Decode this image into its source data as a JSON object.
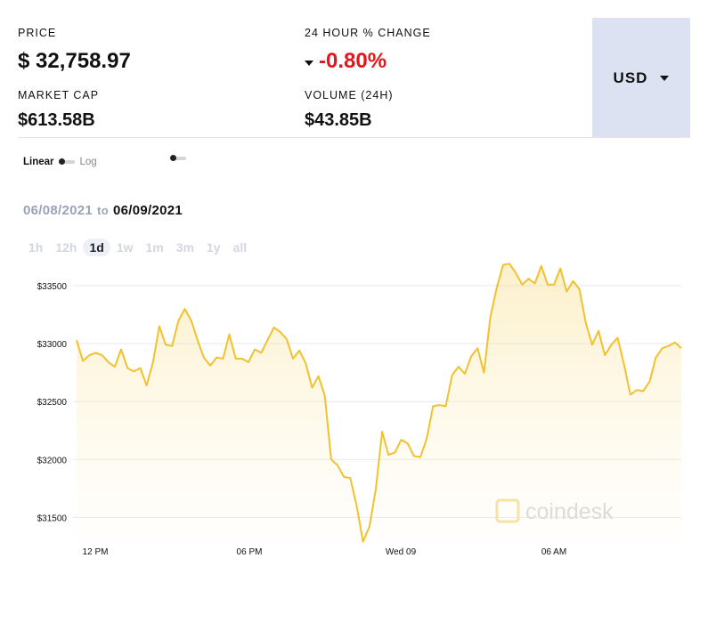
{
  "stats": {
    "price": {
      "label": "PRICE",
      "value": "$ 32,758.97"
    },
    "change": {
      "label": "24 HOUR % CHANGE",
      "value": "-0.80%"
    },
    "market_cap": {
      "label": "MARKET CAP",
      "value": "$613.58B"
    },
    "volume": {
      "label": "VOLUME (24H)",
      "value": "$43.85B"
    }
  },
  "currency": {
    "selected": "USD"
  },
  "scale": {
    "linear": "Linear",
    "log": "Log"
  },
  "date_range": {
    "from": "06/08/2021",
    "to_word": "to",
    "to": "06/09/2021"
  },
  "ranges": [
    "1h",
    "12h",
    "1d",
    "1w",
    "1m",
    "3m",
    "1y",
    "all"
  ],
  "active_range": "1d",
  "watermark": "coindesk",
  "colors": {
    "line": "#f2c12e",
    "negative": "#e8141c",
    "currency_bg": "#dde2f3"
  },
  "chart_data": {
    "type": "area",
    "title": "",
    "xlabel": "",
    "ylabel": "",
    "x_tick_labels": [
      "12 PM",
      "06 PM",
      "Wed 09",
      "06 AM"
    ],
    "y_tick_labels": [
      "$33500",
      "$33000",
      "$32500",
      "$32000",
      "$31500"
    ],
    "y_ticks": [
      33500,
      33000,
      32500,
      32000,
      31500
    ],
    "ylim": [
      31280,
      33700
    ],
    "grid": true,
    "series": [
      {
        "values": [
          33030,
          32850,
          32900,
          32920,
          32900,
          32840,
          32800,
          32950,
          32790,
          32760,
          32790,
          32640,
          32840,
          33150,
          32990,
          32980,
          33200,
          33300,
          33200,
          33030,
          32880,
          32810,
          32880,
          32870,
          33080,
          32870,
          32870,
          32840,
          32950,
          32920,
          33030,
          33140,
          33100,
          33040,
          32870,
          32940,
          32830,
          32620,
          32720,
          32550,
          32000,
          31950,
          31850,
          31840,
          31600,
          31290,
          31420,
          31740,
          32240,
          32040,
          32060,
          32170,
          32140,
          32030,
          32020,
          32180,
          32460,
          32470,
          32460,
          32730,
          32800,
          32740,
          32890,
          32960,
          32750,
          33230,
          33480,
          33680,
          33690,
          33610,
          33510,
          33560,
          33520,
          33670,
          33510,
          33510,
          33650,
          33450,
          33540,
          33470,
          33180,
          32990,
          33110,
          32900,
          32990,
          33050,
          32820,
          32560,
          32600,
          32590,
          32670,
          32880,
          32960,
          32980,
          33010,
          32960
        ]
      }
    ]
  }
}
